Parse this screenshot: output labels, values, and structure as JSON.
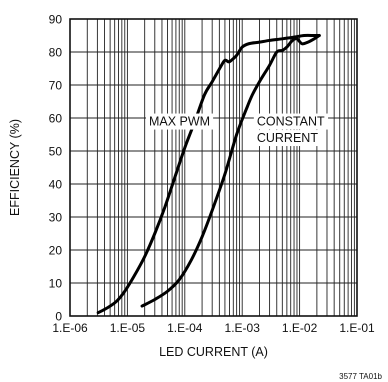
{
  "chart_data": {
    "type": "line",
    "xlabel": "LED CURRENT (A)",
    "ylabel": "EFFICIENCY (%)",
    "x_scale": "log",
    "xlim": [
      1e-06,
      0.1
    ],
    "ylim": [
      0,
      90
    ],
    "x_ticks": [
      1e-06,
      1e-05,
      0.0001,
      0.001,
      0.01,
      0.1
    ],
    "x_tick_labels": [
      "1.E-06",
      "1.E-05",
      "1.E-04",
      "1.E-03",
      "1.E-02",
      "1.E-01"
    ],
    "y_ticks": [
      0,
      10,
      20,
      30,
      40,
      50,
      60,
      70,
      80,
      90
    ],
    "y_tick_labels": [
      "0",
      "10",
      "20",
      "30",
      "40",
      "50",
      "60",
      "70",
      "80",
      "90"
    ],
    "grid": true,
    "series": [
      {
        "name": "MAX PWM",
        "x": [
          3.1e-06,
          4.5e-06,
          6.5e-06,
          9e-06,
          1.3e-05,
          2e-05,
          3e-05,
          4.5e-05,
          7e-05,
          0.0001,
          0.00015,
          0.00022,
          0.0003,
          0.00042,
          0.0005,
          0.00058,
          0.00065,
          0.0008,
          0.001,
          0.0013,
          0.002,
          0.003,
          0.005,
          0.008,
          0.012,
          0.018,
          0.022
        ],
        "values": [
          1,
          2.5,
          4.5,
          7.5,
          12,
          18,
          25,
          33,
          43,
          51,
          59,
          67,
          71,
          75.5,
          77.5,
          77,
          77.5,
          79,
          81.5,
          82.5,
          83,
          83.5,
          84,
          84.5,
          85,
          85,
          85
        ]
      },
      {
        "name": "CONSTANT CURRENT",
        "x": [
          1.8e-05,
          3e-05,
          5e-05,
          8e-05,
          0.00013,
          0.0002,
          0.0003,
          0.0005,
          0.0008,
          0.0012,
          0.0015,
          0.002,
          0.003,
          0.004,
          0.005,
          0.006,
          0.0075,
          0.009,
          0.011,
          0.014,
          0.018,
          0.022
        ],
        "values": [
          3,
          5,
          7.5,
          11,
          17,
          24,
          32,
          43,
          55,
          63,
          67,
          71,
          76,
          80,
          80.5,
          81.5,
          83.5,
          84,
          82.5,
          83,
          84,
          85
        ]
      }
    ],
    "annotations": [
      "MAX PWM",
      "CONSTANT",
      "CURRENT"
    ]
  },
  "figure_id": "3577 TA01b"
}
